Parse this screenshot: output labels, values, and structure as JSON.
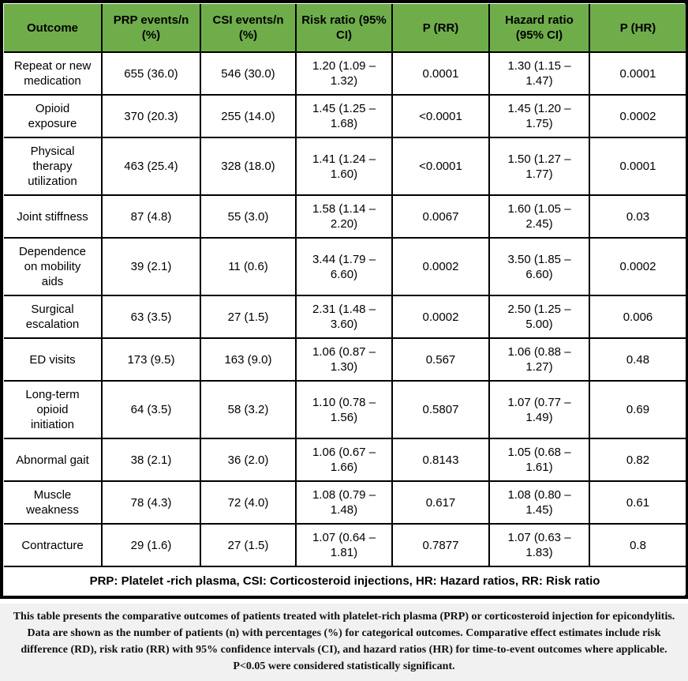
{
  "colors": {
    "header_green": "#6FAD4B",
    "caption_bg": "#F1F1F1",
    "border": "#000000"
  },
  "table": {
    "header": [
      "Outcome",
      "PRP events/n\n(%)",
      "CSI events/n\n(%)",
      "Risk ratio (95%\nCI)",
      "P (RR)",
      "Hazard ratio\n(95% CI)",
      "P (HR)"
    ],
    "rows": [
      {
        "outcome": "Repeat or new\nmedication",
        "prp": "655 (36.0)",
        "csi": "546 (30.0)",
        "rr": "1.20 (1.09 –\n1.32)",
        "p_rr": "0.0001",
        "hr": "1.30 (1.15 –\n1.47)",
        "p_hr": "0.0001"
      },
      {
        "outcome": "Opioid\nexposure",
        "prp": "370 (20.3)",
        "csi": "255 (14.0)",
        "rr": "1.45 (1.25 –\n1.68)",
        "p_rr": "<0.0001",
        "hr": "1.45 (1.20 –\n1.75)",
        "p_hr": "0.0002"
      },
      {
        "outcome": "Physical\ntherapy\nutilization",
        "prp": "463 (25.4)",
        "csi": "328 (18.0)",
        "rr": "1.41 (1.24 –\n1.60)",
        "p_rr": "<0.0001",
        "hr": "1.50 (1.27 –\n1.77)",
        "p_hr": "0.0001"
      },
      {
        "outcome": "Joint stiffness",
        "prp": "87 (4.8)",
        "csi": "55 (3.0)",
        "rr": "1.58 (1.14 –\n2.20)",
        "p_rr": "0.0067",
        "hr": "1.60 (1.05 –\n2.45)",
        "p_hr": "0.03"
      },
      {
        "outcome": "Dependence\non mobility\naids",
        "prp": "39 (2.1)",
        "csi": "11 (0.6)",
        "rr": "3.44 (1.79 –\n6.60)",
        "p_rr": "0.0002",
        "hr": "3.50 (1.85 –\n6.60)",
        "p_hr": "0.0002"
      },
      {
        "outcome": "Surgical\nescalation",
        "prp": "63 (3.5)",
        "csi": "27 (1.5)",
        "rr": "2.31 (1.48 –\n3.60)",
        "p_rr": "0.0002",
        "hr": "2.50 (1.25 –\n5.00)",
        "p_hr": "0.006"
      },
      {
        "outcome": "ED visits",
        "prp": "173 (9.5)",
        "csi": "163 (9.0)",
        "rr": "1.06 (0.87 –\n1.30)",
        "p_rr": "0.567",
        "hr": "1.06 (0.88 –\n1.27)",
        "p_hr": "0.48"
      },
      {
        "outcome": "Long-term\nopioid\ninitiation",
        "prp": "64 (3.5)",
        "csi": "58 (3.2)",
        "rr": "1.10 (0.78 –\n1.56)",
        "p_rr": "0.5807",
        "hr": "1.07 (0.77 –\n1.49)",
        "p_hr": "0.69"
      },
      {
        "outcome": "Abnormal gait",
        "prp": "38 (2.1)",
        "csi": "36 (2.0)",
        "rr": "1.06 (0.67 –\n1.66)",
        "p_rr": "0.8143",
        "hr": "1.05 (0.68 –\n1.61)",
        "p_hr": "0.82"
      },
      {
        "outcome": "Muscle\nweakness",
        "prp": "78 (4.3)",
        "csi": "72 (4.0)",
        "rr": "1.08 (0.79 –\n1.48)",
        "p_rr": "0.617",
        "hr": "1.08 (0.80 –\n1.45)",
        "p_hr": "0.61"
      },
      {
        "outcome": "Contracture",
        "prp": "29 (1.6)",
        "csi": "27 (1.5)",
        "rr": "1.07 (0.64 –\n1.81)",
        "p_rr": "0.7877",
        "hr": "1.07 (0.63 –\n1.83)",
        "p_hr": "0.8"
      }
    ],
    "footnote": "PRP: Platelet -rich plasma, CSI: Corticosteroid injections, HR: Hazard ratios, RR: Risk ratio"
  },
  "caption": "This table presents the comparative outcomes of patients treated with platelet-rich plasma (PRP) or corticosteroid injection for epicondylitis. Data are shown as the number of patients (n) with percentages (%) for categorical outcomes. Comparative effect estimates include risk difference (RD), risk ratio (RR) with 95% confidence intervals (CI), and hazard ratios (HR) for time-to-event outcomes where applicable. P<0.05 were considered statistically significant."
}
